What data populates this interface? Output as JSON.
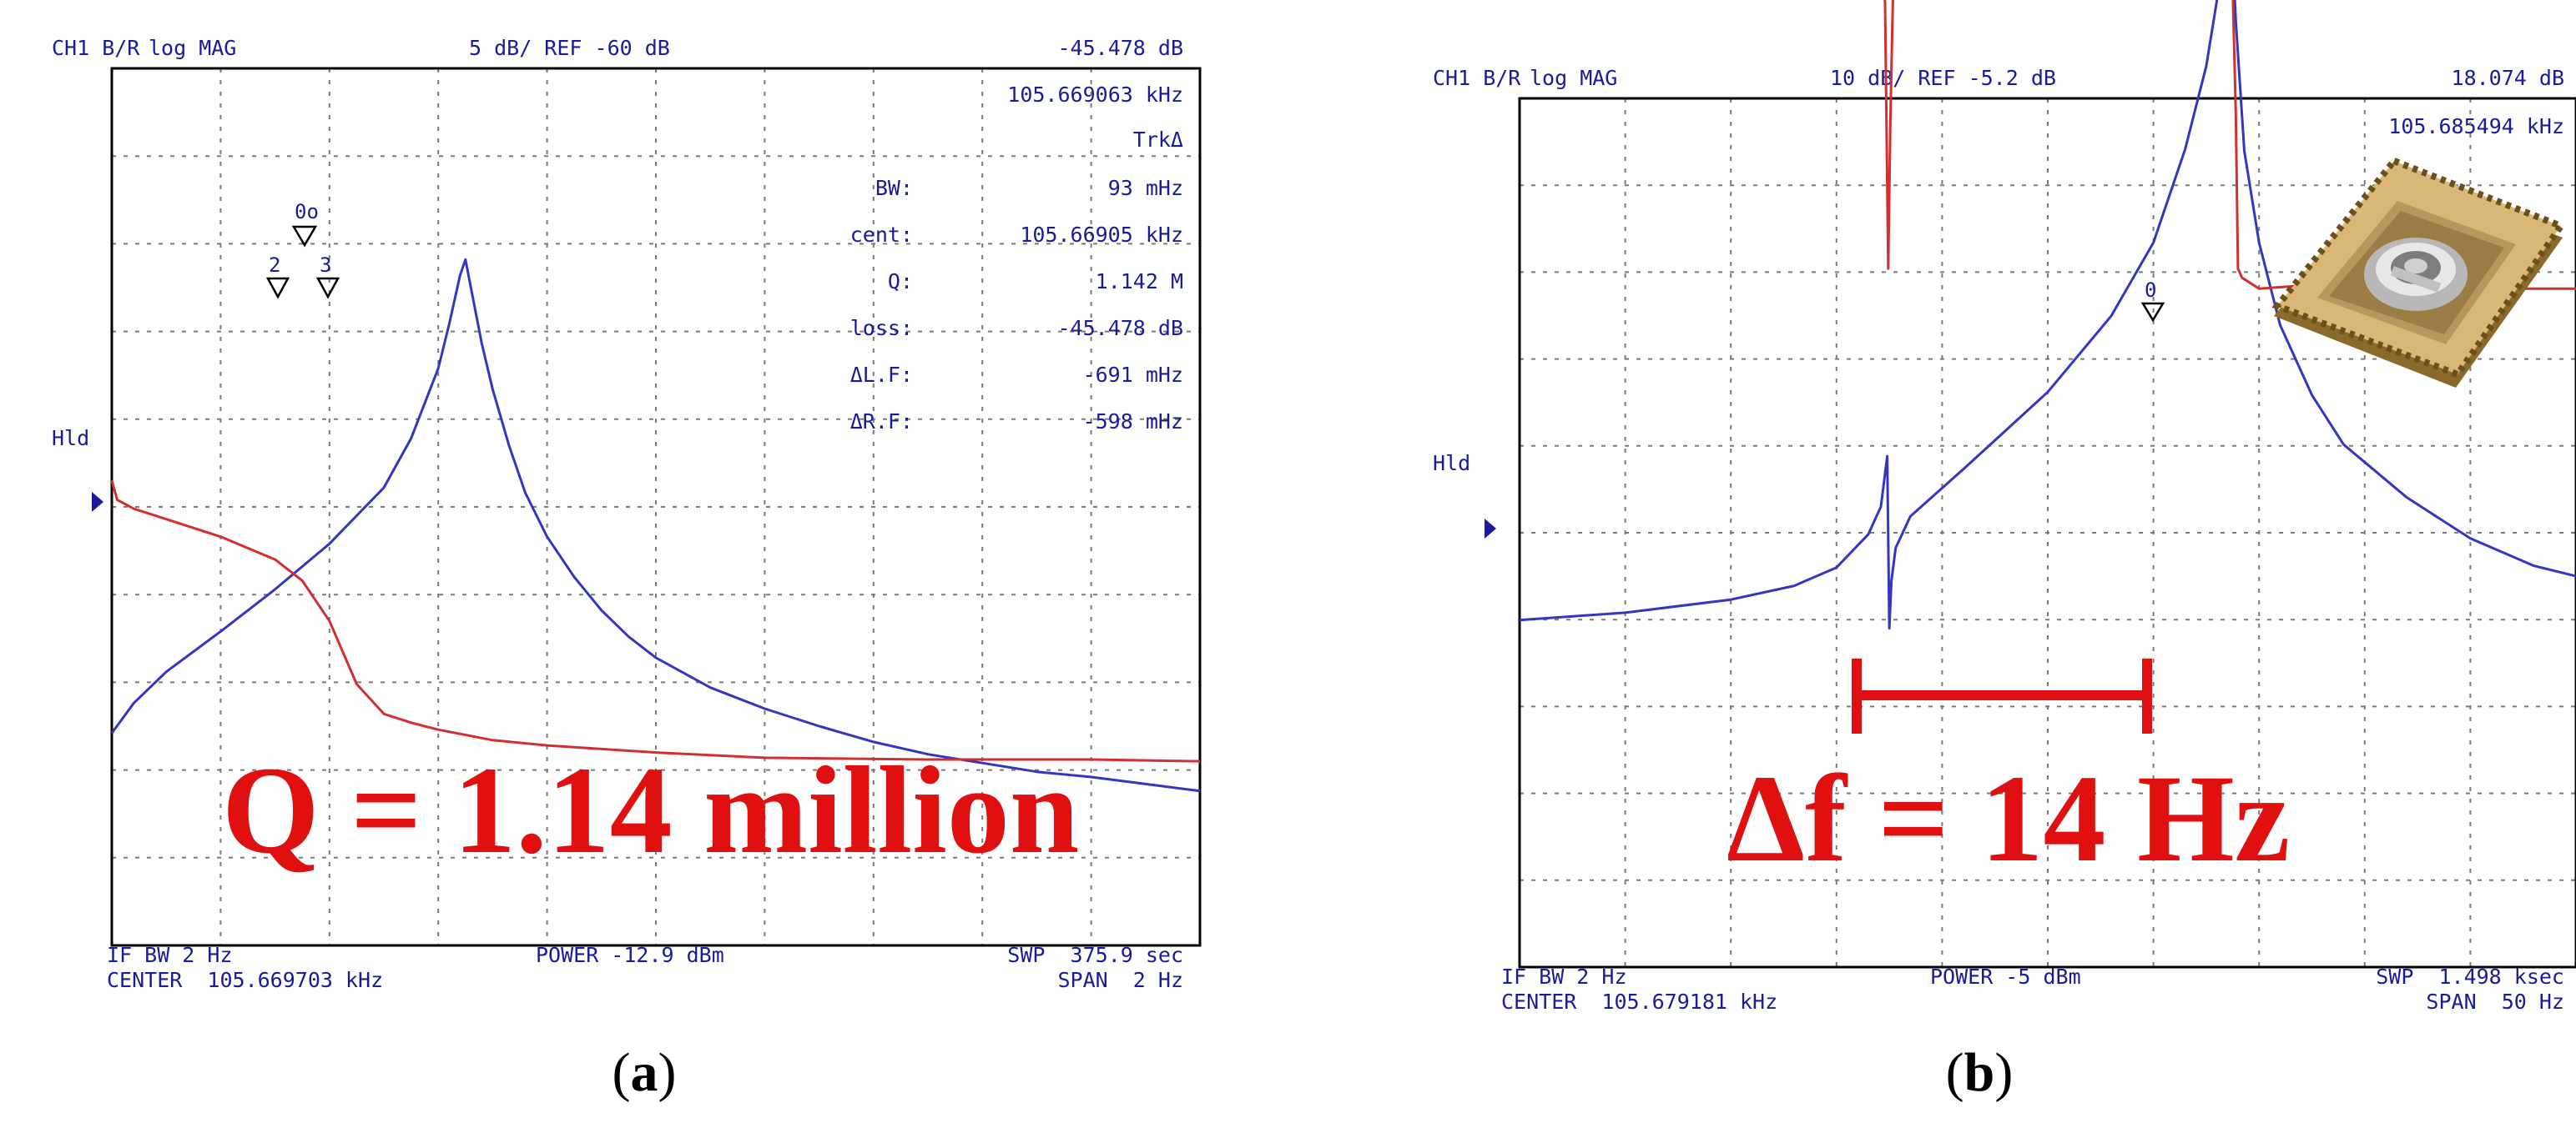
{
  "panels": [
    {
      "header": {
        "channel": "CH1 B/R",
        "format": "log MAG",
        "scale": "5 dB/ REF -60 dB",
        "marker_value": "-45.478 dB",
        "marker_freq": "105.669063 kHz"
      },
      "side_label": "Hld",
      "stats_title": "TrkΔ",
      "stats": [
        {
          "k": "BW:",
          "v": "93 mHz"
        },
        {
          "k": "cent:",
          "v": "105.66905 kHz"
        },
        {
          "k": "Q:",
          "v": "1.142 M"
        },
        {
          "k": "loss:",
          "v": "-45.478 dB"
        },
        {
          "k": "ΔL.F:",
          "v": "-691 mHz"
        },
        {
          "k": "ΔR.F:",
          "v": "-598 mHz"
        }
      ],
      "marker_labels": {
        "top": "0o",
        "left": "2",
        "right": "3"
      },
      "annotation": "Q = 1.14 million",
      "footer": {
        "ifbw": "IF BW 2 Hz",
        "center": "CENTER  105.669703 kHz",
        "power": "POWER -12.9 dBm",
        "swp": "SWP  375.9 sec",
        "span": "SPAN  2 Hz"
      },
      "caption_letter": "a"
    },
    {
      "header": {
        "channel": "CH1 B/R",
        "format": "log MAG",
        "scale": "10 dB/ REF -5.2 dB",
        "marker_value": "18.074 dB",
        "marker_freq": "105.685494 kHz"
      },
      "side_label": "Hld",
      "marker_labels": {
        "top": "0"
      },
      "annotation": "Δf = 14 Hz",
      "footer": {
        "ifbw": "IF BW 2 Hz",
        "center": "CENTER  105.679181 kHz",
        "power": "POWER -5 dBm",
        "swp": "SWP  1.498 ksec",
        "span": "SPAN  50 Hz"
      },
      "caption_letter": "b"
    }
  ],
  "colors": {
    "trace_blue": "#3535c0",
    "trace_red": "#d23030",
    "annotation_red": "#e01010",
    "text_blue": "#1a1a9a"
  },
  "chart_data": [
    {
      "type": "line",
      "title": "",
      "xlabel": "",
      "ylabel": "",
      "x_center_khz": 105.669703,
      "x_span_hz": 2,
      "x_offset_hz_range": [
        -1,
        1
      ],
      "y_ref_db": -60,
      "y_scale_db_per_div": 5,
      "ylim_db": [
        -85,
        -35
      ],
      "grid": true,
      "series": [
        {
          "color": "#3535c0",
          "x": [
            -1.0,
            -0.96,
            -0.9,
            -0.8,
            -0.7,
            -0.6,
            -0.5,
            -0.45,
            -0.4,
            -0.38,
            -0.36,
            -0.35,
            -0.34,
            -0.32,
            -0.3,
            -0.27,
            -0.24,
            -0.2,
            -0.15,
            -0.1,
            -0.05,
            0.0,
            0.1,
            0.2,
            0.3,
            0.4,
            0.5,
            0.6,
            0.7,
            0.8,
            0.9,
            1.0
          ],
          "y": [
            -72.9,
            -71.2,
            -69.4,
            -67.1,
            -64.7,
            -62.1,
            -58.9,
            -56.1,
            -52.1,
            -49.6,
            -46.8,
            -45.9,
            -47.5,
            -50.7,
            -53.3,
            -56.5,
            -59.2,
            -61.7,
            -64.0,
            -65.9,
            -67.4,
            -68.6,
            -70.3,
            -71.5,
            -72.5,
            -73.4,
            -74.1,
            -74.6,
            -75.1,
            -75.4,
            -75.8,
            -76.2
          ]
        },
        {
          "color": "#d23030",
          "x": [
            -1.0,
            -0.99,
            -0.96,
            -0.9,
            -0.8,
            -0.7,
            -0.65,
            -0.6,
            -0.55,
            -0.5,
            -0.45,
            -0.4,
            -0.3,
            -0.2,
            0.0,
            0.2,
            0.5,
            0.8,
            1.0
          ],
          "y": [
            -58.5,
            -59.6,
            -60.1,
            -60.7,
            -61.7,
            -63.0,
            -64.2,
            -66.5,
            -70.1,
            -71.8,
            -72.3,
            -72.7,
            -73.3,
            -73.6,
            -74.0,
            -74.3,
            -74.4,
            -74.4,
            -74.5
          ]
        }
      ]
    },
    {
      "type": "line",
      "title": "",
      "xlabel": "",
      "ylabel": "",
      "x_center_khz": 105.679181,
      "x_span_hz": 50,
      "x_offset_hz_range": [
        -25,
        25
      ],
      "y_ref_db": -5.2,
      "y_scale_db_per_div": 10,
      "ylim_db": [
        -105.2,
        94.8
      ],
      "grid": true,
      "series": [
        {
          "color": "#3535c0",
          "x": [
            -25,
            -20,
            -15,
            -12,
            -10,
            -8.5,
            -7.9,
            -7.6,
            -7.5,
            -7.4,
            -7.2,
            -6.5,
            -4,
            0,
            3,
            5,
            6.5,
            7.5,
            8.2,
            8.7,
            8.9,
            9.3,
            10,
            11,
            12.5,
            14,
            17,
            20,
            23,
            25
          ],
          "y": [
            -25.3,
            -23.6,
            -20.6,
            -17.4,
            -13.2,
            -5.6,
            0.8,
            12.4,
            -27.2,
            -16.3,
            -8.7,
            -1.4,
            9.4,
            27.2,
            44.7,
            61.6,
            83.1,
            102.2,
            123.2,
            133.8,
            112.7,
            82.7,
            61.6,
            42.6,
            26.5,
            15.1,
            2.9,
            -6.5,
            -12.8,
            -15.2
          ]
        },
        {
          "color": "#d23030",
          "x": [
            -25,
            -20,
            -15,
            -10,
            -8.5,
            -8.0,
            -7.7,
            -7.55,
            -7.45,
            -7.3,
            -7.1,
            -6.8,
            -6,
            0,
            6,
            8.3,
            8.7,
            8.9,
            9.0,
            9.2,
            10,
            12,
            18,
            25
          ],
          "y": [
            139.6,
            138.5,
            138.5,
            138.5,
            137.6,
            132.9,
            116.9,
            55.6,
            89.9,
            125.3,
            136.6,
            138.5,
            138.5,
            138.5,
            138.5,
            136.6,
            129.6,
            91.6,
            55.6,
            53.5,
            51.0,
            51.7,
            51.0,
            51.0
          ]
        }
      ]
    }
  ]
}
